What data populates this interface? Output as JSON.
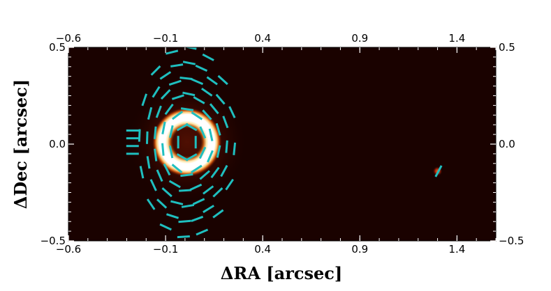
{
  "chart_data": {
    "type": "heatmap",
    "title": "",
    "xlabel": "ΔRA [arcsec]",
    "ylabel": "ΔDec [arcsec]",
    "xlim": [
      -0.6,
      1.6
    ],
    "ylim": [
      -0.5,
      0.5
    ],
    "x_ticks": [
      "−0.6",
      "−0.1",
      "0.4",
      "0.9",
      "1.4"
    ],
    "x_tick_values": [
      -0.6,
      -0.1,
      0.4,
      0.9,
      1.4
    ],
    "y_ticks": [
      "−0.5",
      "0.0",
      "0.5"
    ],
    "y_tick_values": [
      -0.5,
      0.0,
      0.5
    ],
    "colormap": "afmhot",
    "background_color": "#1a0200",
    "ring": {
      "center": [
        0.01,
        0.01
      ],
      "radius": 0.16,
      "width": 0.05,
      "color": "#ffffff"
    },
    "point_source": {
      "x": 1.3,
      "y": -0.14
    },
    "vector_color": "#1fbfbf",
    "vectors": [
      {
        "x": -0.27,
        "y": 0.07,
        "angle": 0
      },
      {
        "x": -0.27,
        "y": 0.03,
        "angle": 0
      },
      {
        "x": -0.27,
        "y": -0.01,
        "angle": 0
      },
      {
        "x": -0.27,
        "y": -0.05,
        "angle": 0
      }
    ]
  }
}
